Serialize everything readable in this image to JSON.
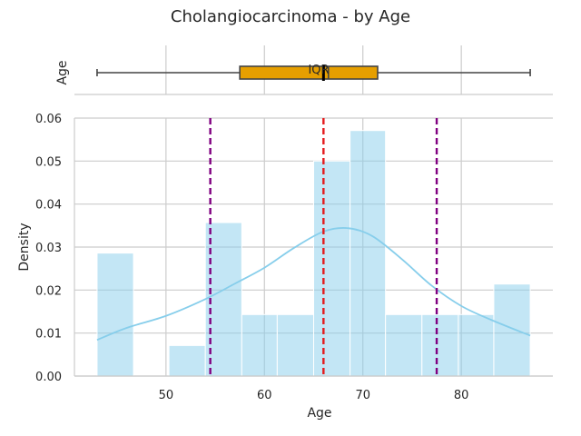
{
  "figure": {
    "title": "Cholangiocarcinoma - by Age"
  },
  "colors": {
    "hist_fill": "#87ceeb",
    "kde_line": "#87ceeb",
    "box_fill": "#e69f00",
    "mean_line": "#e41a1c",
    "sd_line": "#800080",
    "grid": "#cccccc",
    "axis": "#cccccc",
    "text": "#262626"
  },
  "chart_data": [
    {
      "type": "box",
      "ylabel": "Age",
      "annotation": "IQR",
      "whisker_low": 43,
      "q1": 57.5,
      "median": 66.5,
      "q3": 71.5,
      "whisker_high": 87,
      "mean": 66,
      "xlim": [
        40.7,
        89.3
      ],
      "xticks": [
        50,
        60,
        70,
        80
      ],
      "grid": true
    },
    {
      "type": "histogram",
      "xlabel": "Age",
      "ylabel": "Density",
      "xlim": [
        40.7,
        89.3
      ],
      "ylim": [
        0,
        0.06
      ],
      "xticks": [
        50,
        60,
        70,
        80
      ],
      "yticks": [
        0.0,
        0.01,
        0.02,
        0.03,
        0.04,
        0.05,
        0.06
      ],
      "ytick_labels": [
        "0.00",
        "0.01",
        "0.02",
        "0.03",
        "0.04",
        "0.05",
        "0.06"
      ],
      "grid": true,
      "bins": [
        {
          "x0": 43.0,
          "x1": 46.7,
          "density": 0.0286
        },
        {
          "x0": 46.7,
          "x1": 50.3,
          "density": 0.0
        },
        {
          "x0": 50.3,
          "x1": 54.0,
          "density": 0.0071
        },
        {
          "x0": 54.0,
          "x1": 57.7,
          "density": 0.0357
        },
        {
          "x0": 57.7,
          "x1": 61.3,
          "density": 0.0143
        },
        {
          "x0": 61.3,
          "x1": 65.0,
          "density": 0.0143
        },
        {
          "x0": 65.0,
          "x1": 68.7,
          "density": 0.05
        },
        {
          "x0": 68.7,
          "x1": 72.3,
          "density": 0.0571
        },
        {
          "x0": 72.3,
          "x1": 76.0,
          "density": 0.0143
        },
        {
          "x0": 76.0,
          "x1": 79.7,
          "density": 0.0143
        },
        {
          "x0": 79.7,
          "x1": 83.3,
          "density": 0.0143
        },
        {
          "x0": 83.3,
          "x1": 87.0,
          "density": 0.0214
        }
      ],
      "kde": {
        "x": [
          43,
          46,
          50,
          54,
          57,
          60,
          63,
          66,
          68.5,
          71,
          74,
          77,
          80,
          83,
          87
        ],
        "y": [
          0.0084,
          0.0112,
          0.014,
          0.0179,
          0.0215,
          0.0252,
          0.0298,
          0.0336,
          0.0344,
          0.0325,
          0.0271,
          0.021,
          0.0163,
          0.0131,
          0.0094
        ]
      },
      "reference_lines": [
        {
          "name": "mean",
          "x": 66.0
        },
        {
          "name": "mean - sd",
          "x": 54.5
        },
        {
          "name": "mean + sd",
          "x": 77.5
        }
      ]
    }
  ]
}
